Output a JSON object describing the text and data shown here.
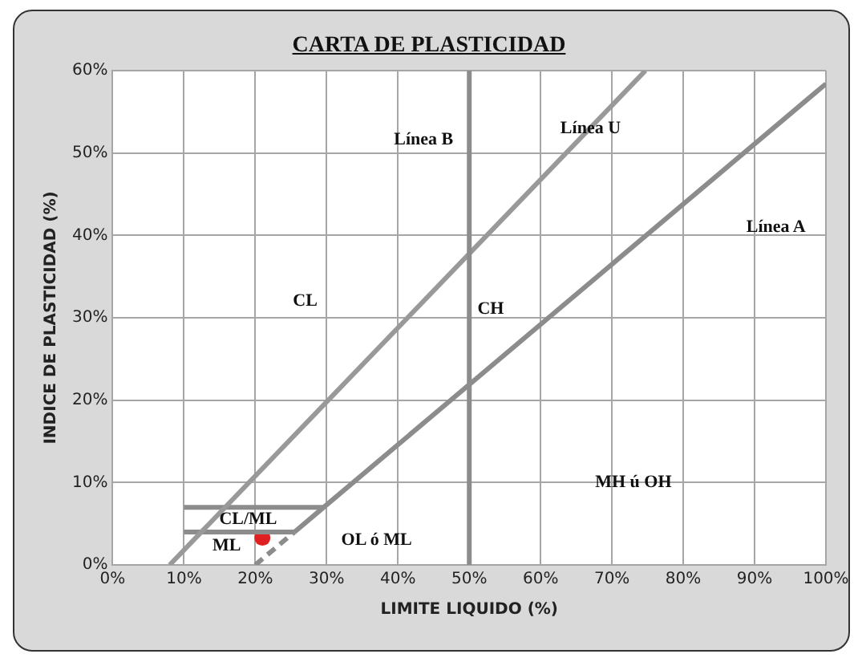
{
  "chart_data": {
    "type": "line",
    "title": "CARTA DE PLASTICIDAD",
    "xlabel": "LIMITE LIQUIDO (%)",
    "ylabel": "INDICE DE PLASTICIDAD (%)",
    "xlim": [
      0,
      100
    ],
    "ylim": [
      0,
      60
    ],
    "xticks": [
      {
        "value": 0,
        "label": "0%"
      },
      {
        "value": 10,
        "label": "10%"
      },
      {
        "value": 20,
        "label": "20%"
      },
      {
        "value": 30,
        "label": "30%"
      },
      {
        "value": 40,
        "label": "40%"
      },
      {
        "value": 50,
        "label": "50%"
      },
      {
        "value": 60,
        "label": "60%"
      },
      {
        "value": 70,
        "label": "70%"
      },
      {
        "value": 80,
        "label": "80%"
      },
      {
        "value": 90,
        "label": "90%"
      },
      {
        "value": 100,
        "label": "100%"
      }
    ],
    "yticks": [
      {
        "value": 0,
        "label": "0%"
      },
      {
        "value": 10,
        "label": "10%"
      },
      {
        "value": 20,
        "label": "20%"
      },
      {
        "value": 30,
        "label": "30%"
      },
      {
        "value": 40,
        "label": "40%"
      },
      {
        "value": 50,
        "label": "50%"
      },
      {
        "value": 60,
        "label": "60%"
      }
    ],
    "grid": true,
    "legend": false,
    "marker": "none",
    "line_style": "solid",
    "series": [
      {
        "color": "#8c8c8c",
        "x": [
          25.5,
          29.6,
          100
        ],
        "values": [
          4,
          7,
          58.4
        ]
      },
      {
        "color": "#8c8c8c",
        "line_style": "dashed",
        "x": [
          20,
          25.5
        ],
        "values": [
          0,
          4
        ]
      },
      {
        "color": "#999999",
        "x": [
          8,
          74.7
        ],
        "values": [
          0,
          60
        ]
      },
      {
        "color": "#8c8c8c",
        "x": [
          10,
          29.6
        ],
        "values": [
          7,
          7
        ]
      },
      {
        "color": "#8c8c8c",
        "x": [
          10,
          25.5
        ],
        "values": [
          4,
          4
        ]
      },
      {
        "type": "scatter",
        "color": "#e02020",
        "marker": "circle",
        "x": [
          21
        ],
        "values": [
          3.3
        ]
      }
    ],
    "ref_lines": [
      {
        "axis": "x",
        "value": 50,
        "label": "Línea B",
        "color": "#8c8c8c"
      }
    ],
    "annotations": [
      "CL",
      "CH",
      "Línea U",
      "Línea A",
      "CL/ML",
      "ML",
      "OL ó ML",
      "MH ú OH"
    ]
  }
}
